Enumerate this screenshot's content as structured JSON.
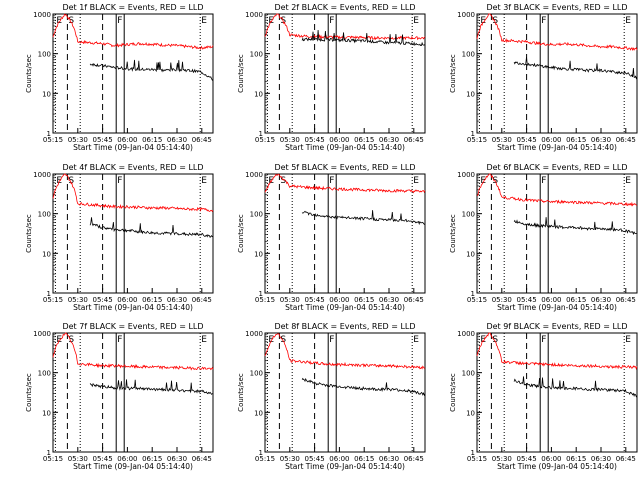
{
  "xlabel": "Start Time (09-Jan-04 05:14:40)",
  "ylabel": "Counts/sec",
  "x_tick_labels": [
    "05:15",
    "05:30",
    "05:45",
    "06:00",
    "06:15",
    "06:30",
    "06:45"
  ],
  "y_tick_labels": [
    "1",
    "10",
    "100",
    "1000"
  ],
  "colors": {
    "events": "#000000",
    "lld": "#ff0000"
  },
  "chart_data": [
    {
      "type": "line",
      "title": "Det 1f BLACK = Events, RED = LLD",
      "yscale": "log",
      "ylim": [
        1,
        1000
      ],
      "x_range": [
        "05:14:40",
        "06:52"
      ],
      "markers": [
        {
          "label": "E",
          "style": "dotted"
        },
        {
          "label": "S",
          "style": "dashed"
        },
        {
          "label": "",
          "style": "dotted"
        },
        {
          "label": "",
          "style": "dashed"
        },
        {
          "label": "F",
          "style": "solid"
        },
        {
          "label": "",
          "style": "solid"
        },
        {
          "label": "E",
          "style": "dotted"
        }
      ],
      "series": [
        {
          "name": "LLD",
          "values": [
            260,
            1000,
            200,
            190,
            180,
            160,
            170,
            180,
            175,
            165,
            160,
            150,
            140,
            150
          ]
        },
        {
          "name": "Events",
          "values": [
            null,
            null,
            null,
            55,
            50,
            45,
            42,
            40,
            40,
            38,
            40,
            38,
            35,
            22
          ]
        }
      ]
    },
    {
      "type": "line",
      "title": "Det 2f BLACK = Events, RED = LLD",
      "yscale": "log",
      "ylim": [
        1,
        1000
      ],
      "x_range": [
        "05:14:40",
        "06:52"
      ],
      "markers": [
        {
          "label": "E",
          "style": "dotted"
        },
        {
          "label": "S",
          "style": "dashed"
        },
        {
          "label": "",
          "style": "dotted"
        },
        {
          "label": "",
          "style": "dashed"
        },
        {
          "label": "F",
          "style": "solid"
        },
        {
          "label": "",
          "style": "solid"
        },
        {
          "label": "E",
          "style": "dotted"
        }
      ],
      "series": [
        {
          "name": "LLD",
          "values": [
            270,
            1000,
            300,
            280,
            270,
            265,
            260,
            260,
            255,
            250,
            250,
            250,
            250,
            250
          ]
        },
        {
          "name": "Events",
          "values": [
            null,
            null,
            null,
            230,
            230,
            225,
            220,
            215,
            210,
            200,
            190,
            185,
            180,
            170
          ]
        }
      ]
    },
    {
      "type": "line",
      "title": "Det 3f BLACK = Events, RED = LLD",
      "yscale": "log",
      "ylim": [
        1,
        1000
      ],
      "x_range": [
        "05:14:40",
        "06:52"
      ],
      "markers": [
        {
          "label": "E",
          "style": "dotted"
        },
        {
          "label": "S",
          "style": "dashed"
        },
        {
          "label": "",
          "style": "dotted"
        },
        {
          "label": "",
          "style": "dashed"
        },
        {
          "label": "F",
          "style": "solid"
        },
        {
          "label": "",
          "style": "solid"
        },
        {
          "label": "E",
          "style": "dotted"
        }
      ],
      "series": [
        {
          "name": "LLD",
          "values": [
            250,
            1000,
            220,
            210,
            200,
            180,
            170,
            175,
            170,
            160,
            150,
            150,
            140,
            130
          ]
        },
        {
          "name": "Events",
          "values": [
            null,
            null,
            null,
            60,
            55,
            50,
            45,
            42,
            40,
            38,
            38,
            35,
            33,
            25
          ]
        }
      ]
    },
    {
      "type": "line",
      "title": "Det 4f BLACK = Events, RED = LLD",
      "yscale": "log",
      "ylim": [
        1,
        1000
      ],
      "x_range": [
        "05:14:40",
        "06:52"
      ],
      "markers": [
        {
          "label": "E",
          "style": "dotted"
        },
        {
          "label": "S",
          "style": "dashed"
        },
        {
          "label": "",
          "style": "dotted"
        },
        {
          "label": "",
          "style": "dashed"
        },
        {
          "label": "F",
          "style": "solid"
        },
        {
          "label": "",
          "style": "solid"
        },
        {
          "label": "E",
          "style": "dotted"
        }
      ],
      "series": [
        {
          "name": "LLD",
          "values": [
            250,
            1000,
            180,
            170,
            160,
            150,
            150,
            145,
            140,
            140,
            135,
            130,
            130,
            120
          ]
        },
        {
          "name": "Events",
          "values": [
            null,
            null,
            null,
            55,
            45,
            40,
            38,
            35,
            33,
            32,
            32,
            30,
            30,
            26
          ]
        }
      ]
    },
    {
      "type": "line",
      "title": "Det 5f BLACK = Events, RED = LLD",
      "yscale": "log",
      "ylim": [
        1,
        1000
      ],
      "x_range": [
        "05:14:40",
        "06:52"
      ],
      "markers": [
        {
          "label": "E",
          "style": "dotted"
        },
        {
          "label": "S",
          "style": "dashed"
        },
        {
          "label": "",
          "style": "dotted"
        },
        {
          "label": "",
          "style": "dashed"
        },
        {
          "label": "F",
          "style": "solid"
        },
        {
          "label": "",
          "style": "solid"
        },
        {
          "label": "E",
          "style": "dotted"
        }
      ],
      "series": [
        {
          "name": "LLD",
          "values": [
            320,
            1000,
            500,
            470,
            450,
            430,
            420,
            410,
            400,
            390,
            380,
            380,
            370,
            360
          ]
        },
        {
          "name": "Events",
          "values": [
            null,
            null,
            null,
            110,
            95,
            85,
            80,
            78,
            75,
            72,
            70,
            68,
            65,
            55
          ]
        }
      ]
    },
    {
      "type": "line",
      "title": "Det 6f BLACK = Events, RED = LLD",
      "yscale": "log",
      "ylim": [
        1,
        1000
      ],
      "x_range": [
        "05:14:40",
        "06:52"
      ],
      "markers": [
        {
          "label": "E",
          "style": "dotted"
        },
        {
          "label": "S",
          "style": "dashed"
        },
        {
          "label": "",
          "style": "dotted"
        },
        {
          "label": "",
          "style": "dashed"
        },
        {
          "label": "F",
          "style": "solid"
        },
        {
          "label": "",
          "style": "solid"
        },
        {
          "label": "E",
          "style": "dotted"
        }
      ],
      "series": [
        {
          "name": "LLD",
          "values": [
            270,
            1000,
            260,
            240,
            220,
            210,
            200,
            200,
            195,
            190,
            185,
            180,
            175,
            170
          ]
        },
        {
          "name": "Events",
          "values": [
            null,
            null,
            null,
            65,
            55,
            50,
            48,
            45,
            45,
            42,
            42,
            40,
            38,
            30
          ]
        }
      ]
    },
    {
      "type": "line",
      "title": "Det 7f BLACK = Events, RED = LLD",
      "yscale": "log",
      "ylim": [
        1,
        1000
      ],
      "x_range": [
        "05:14:40",
        "06:52"
      ],
      "markers": [
        {
          "label": "E",
          "style": "dotted"
        },
        {
          "label": "S",
          "style": "dashed"
        },
        {
          "label": "",
          "style": "dotted"
        },
        {
          "label": "",
          "style": "dashed"
        },
        {
          "label": "F",
          "style": "solid"
        },
        {
          "label": "",
          "style": "solid"
        },
        {
          "label": "E",
          "style": "dotted"
        }
      ],
      "series": [
        {
          "name": "LLD",
          "values": [
            250,
            1000,
            170,
            160,
            150,
            150,
            145,
            140,
            140,
            135,
            135,
            130,
            130,
            125
          ]
        },
        {
          "name": "Events",
          "values": [
            null,
            null,
            null,
            50,
            45,
            42,
            40,
            40,
            38,
            38,
            36,
            35,
            34,
            30
          ]
        }
      ]
    },
    {
      "type": "line",
      "title": "Det 8f BLACK = Events, RED = LLD",
      "yscale": "log",
      "ylim": [
        1,
        1000
      ],
      "x_range": [
        "05:14:40",
        "06:52"
      ],
      "markers": [
        {
          "label": "E",
          "style": "dotted"
        },
        {
          "label": "S",
          "style": "dashed"
        },
        {
          "label": "",
          "style": "dotted"
        },
        {
          "label": "",
          "style": "dashed"
        },
        {
          "label": "F",
          "style": "solid"
        },
        {
          "label": "",
          "style": "solid"
        },
        {
          "label": "E",
          "style": "dotted"
        }
      ],
      "series": [
        {
          "name": "LLD",
          "values": [
            250,
            1000,
            200,
            190,
            175,
            165,
            160,
            160,
            155,
            150,
            150,
            145,
            140,
            135
          ]
        },
        {
          "name": "Events",
          "values": [
            null,
            null,
            null,
            70,
            55,
            48,
            45,
            42,
            40,
            38,
            38,
            36,
            34,
            28
          ]
        }
      ]
    },
    {
      "type": "line",
      "title": "Det 9f BLACK = Events, RED = LLD",
      "yscale": "log",
      "ylim": [
        1,
        1000
      ],
      "x_range": [
        "05:14:40",
        "06:52"
      ],
      "markers": [
        {
          "label": "E",
          "style": "dotted"
        },
        {
          "label": "S",
          "style": "dashed"
        },
        {
          "label": "",
          "style": "dotted"
        },
        {
          "label": "",
          "style": "dashed"
        },
        {
          "label": "F",
          "style": "solid"
        },
        {
          "label": "",
          "style": "solid"
        },
        {
          "label": "E",
          "style": "dotted"
        }
      ],
      "series": [
        {
          "name": "LLD",
          "values": [
            260,
            1000,
            190,
            180,
            170,
            165,
            160,
            155,
            150,
            150,
            145,
            140,
            140,
            135
          ]
        },
        {
          "name": "Events",
          "values": [
            null,
            null,
            null,
            65,
            50,
            45,
            42,
            40,
            40,
            38,
            38,
            36,
            35,
            25
          ]
        }
      ]
    }
  ]
}
